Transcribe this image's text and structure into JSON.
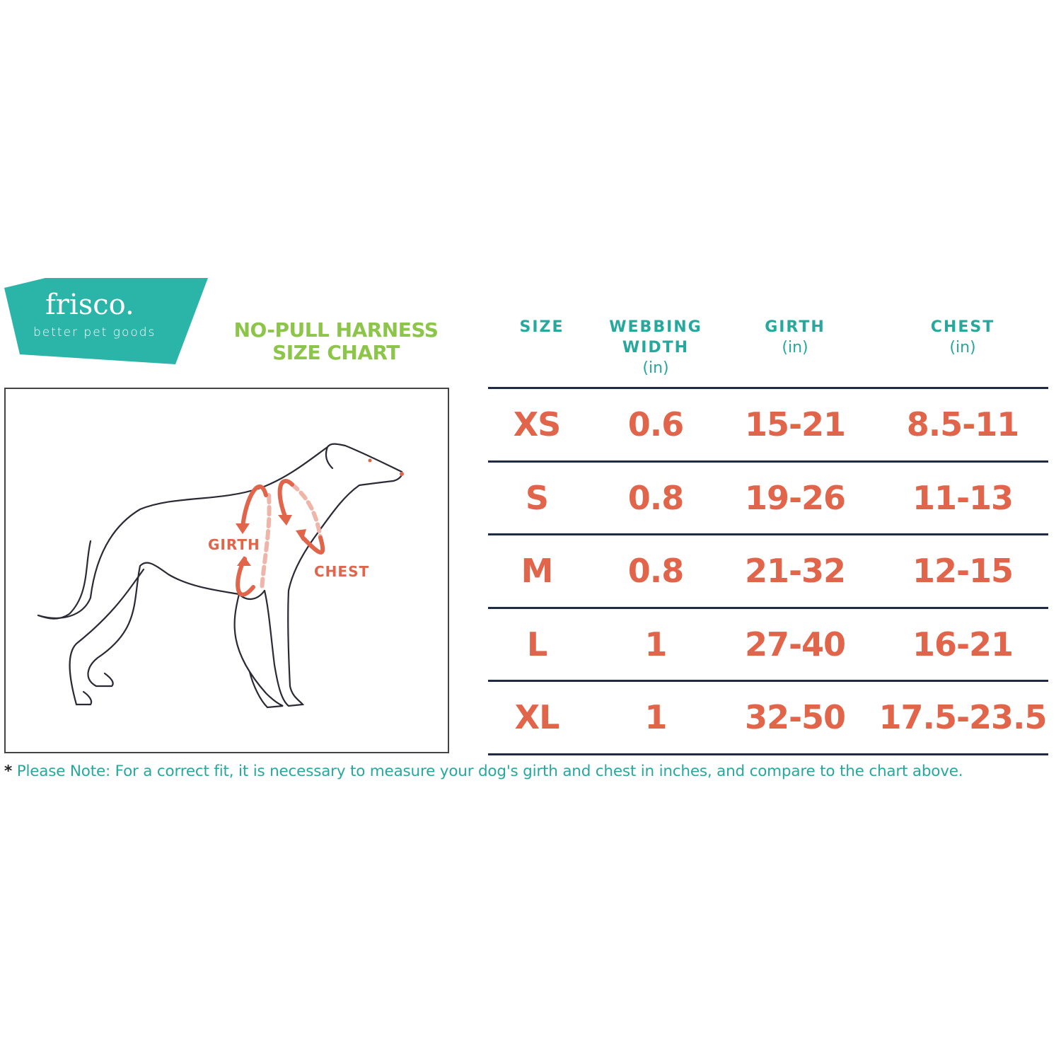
{
  "brand": {
    "name": "frisco.",
    "tagline": "better pet goods",
    "color": "#2bb5a8"
  },
  "title": {
    "line1": "NO-PULL HARNESS",
    "line2": "SIZE CHART",
    "color": "#8dc44a"
  },
  "diagram": {
    "labels": {
      "girth": "GIRTH",
      "chest": "CHEST"
    },
    "accent": "#e0654a"
  },
  "table": {
    "headers": [
      {
        "line1": "SIZE",
        "line2": "",
        "line3": ""
      },
      {
        "line1": "WEBBING",
        "line2": "WIDTH",
        "line3": "(in)"
      },
      {
        "line1": "GIRTH",
        "line2": "(in)",
        "line3": ""
      },
      {
        "line1": "CHEST",
        "line2": "(in)",
        "line3": ""
      }
    ],
    "rows": [
      [
        "XS",
        "0.6",
        "15-21",
        "8.5-11"
      ],
      [
        "S",
        "0.8",
        "19-26",
        "11-13"
      ],
      [
        "M",
        "0.8",
        "21-32",
        "12-15"
      ],
      [
        "L",
        "1",
        "27-40",
        "16-21"
      ],
      [
        "XL",
        "1",
        "32-50",
        "17.5-23.5"
      ]
    ],
    "header_color": "#26a89c",
    "value_color": "#e0654a"
  },
  "note": {
    "star": "*",
    "text": "Please Note: For a correct fit, it is necessary to measure your dog's girth and chest in inches, and compare to the chart above."
  }
}
